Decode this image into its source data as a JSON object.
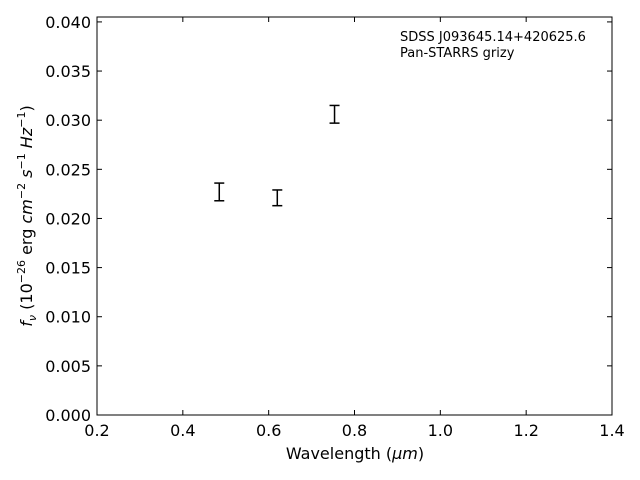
{
  "chart_data": {
    "type": "scatter",
    "title": "",
    "xlabel_main": "Wavelength (",
    "xlabel_unit": "μm",
    "xlabel_close": ")",
    "ylabel_f": "f",
    "ylabel_sub": "ν",
    "ylabel_open": " (10",
    "ylabel_exp1": "−26",
    "ylabel_erg": " erg ",
    "ylabel_cm": "cm",
    "ylabel_exp2": "−2",
    "ylabel_s": " s",
    "ylabel_exp3": "−1",
    "ylabel_hz": " Hz",
    "ylabel_exp4": "−1",
    "ylabel_close": ")",
    "xlim": [
      0.2,
      1.4
    ],
    "ylim": [
      0.0,
      0.0405
    ],
    "xticks": [
      0.2,
      0.4,
      0.6,
      0.8,
      1.0,
      1.2,
      1.4
    ],
    "xtick_labels": [
      "0.2",
      "0.4",
      "0.6",
      "0.8",
      "1.0",
      "1.2",
      "1.4"
    ],
    "yticks": [
      0.0,
      0.005,
      0.01,
      0.015,
      0.02,
      0.025,
      0.03,
      0.035,
      0.04
    ],
    "ytick_labels": [
      "0.000",
      "0.005",
      "0.010",
      "0.015",
      "0.020",
      "0.025",
      "0.030",
      "0.035",
      "0.040"
    ],
    "grid": false,
    "annotations": [
      "SDSS J093645.14+420625.6",
      "Pan-STARRS grizy"
    ],
    "series": [
      {
        "x": [
          0.4849,
          0.6201,
          0.7535
        ],
        "y": [
          0.0227,
          0.0221,
          0.0306
        ],
        "yerr": [
          0.0009,
          0.0008,
          0.0009
        ],
        "marker": "errorbar",
        "color": "#000000"
      }
    ]
  }
}
